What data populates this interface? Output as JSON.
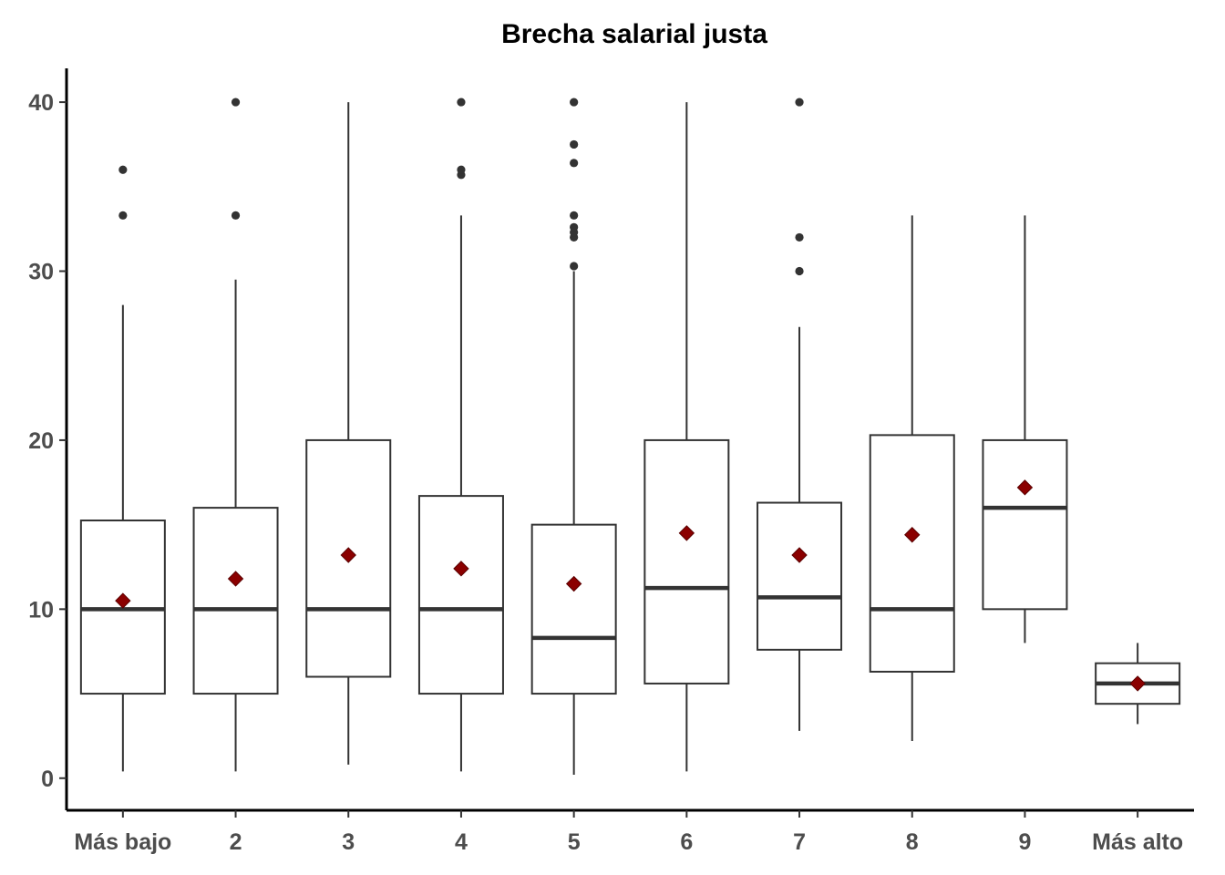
{
  "chart_data": {
    "type": "boxplot",
    "title": "Brecha salarial justa",
    "xlabel": "",
    "ylabel": "",
    "categories": [
      "Más bajo",
      "2",
      "3",
      "4",
      "5",
      "6",
      "7",
      "8",
      "9",
      "Más alto"
    ],
    "ylim": [
      -1.9,
      42
    ],
    "yticks": [
      0,
      10,
      20,
      30,
      40
    ],
    "grid": false,
    "legend": "none",
    "colors": {
      "box_stroke": "#333333",
      "median": "#333333",
      "outlier": "#333333",
      "mean_marker": "#8b0000",
      "axis": "#000000",
      "tick_label": "#4d4d4d"
    },
    "boxes": [
      {
        "category": "Más bajo",
        "whisker_low": 0.4,
        "q1": 5.0,
        "median": 10.0,
        "q3": 15.25,
        "whisker_high": 28.0,
        "mean": 10.5,
        "outliers": [
          33.3,
          36.0
        ]
      },
      {
        "category": "2",
        "whisker_low": 0.4,
        "q1": 5.0,
        "median": 10.0,
        "q3": 16.0,
        "whisker_high": 29.5,
        "mean": 11.8,
        "outliers": [
          33.3,
          40.0
        ]
      },
      {
        "category": "3",
        "whisker_low": 0.8,
        "q1": 6.0,
        "median": 10.0,
        "q3": 20.0,
        "whisker_high": 40.0,
        "mean": 13.2,
        "outliers": []
      },
      {
        "category": "4",
        "whisker_low": 0.4,
        "q1": 5.0,
        "median": 10.0,
        "q3": 16.7,
        "whisker_high": 33.3,
        "mean": 12.4,
        "outliers": [
          35.7,
          36.0,
          40.0
        ]
      },
      {
        "category": "5",
        "whisker_low": 0.2,
        "q1": 5.0,
        "median": 8.3,
        "q3": 15.0,
        "whisker_high": 30.0,
        "mean": 11.5,
        "outliers": [
          30.3,
          32.0,
          32.3,
          32.6,
          33.3,
          36.4,
          37.5,
          40.0
        ]
      },
      {
        "category": "6",
        "whisker_low": 0.4,
        "q1": 5.6,
        "median": 11.25,
        "q3": 20.0,
        "whisker_high": 40.0,
        "mean": 14.5,
        "outliers": []
      },
      {
        "category": "7",
        "whisker_low": 2.8,
        "q1": 7.6,
        "median": 10.7,
        "q3": 16.3,
        "whisker_high": 26.7,
        "mean": 13.2,
        "outliers": [
          30.0,
          32.0,
          40.0
        ]
      },
      {
        "category": "8",
        "whisker_low": 2.2,
        "q1": 6.3,
        "median": 10.0,
        "q3": 20.3,
        "whisker_high": 33.3,
        "mean": 14.4,
        "outliers": []
      },
      {
        "category": "9",
        "whisker_low": 8.0,
        "q1": 10.0,
        "median": 16.0,
        "q3": 20.0,
        "whisker_high": 33.3,
        "mean": 17.2,
        "outliers": []
      },
      {
        "category": "Más alto",
        "whisker_low": 3.2,
        "q1": 4.4,
        "median": 5.6,
        "q3": 6.8,
        "whisker_high": 8.0,
        "mean": 5.6,
        "outliers": []
      }
    ]
  }
}
